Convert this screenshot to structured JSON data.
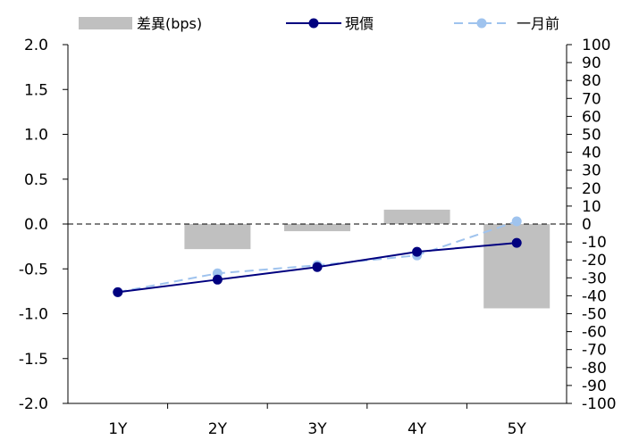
{
  "chart_data": {
    "type": "bar-line",
    "categories": [
      "1Y",
      "2Y",
      "3Y",
      "4Y",
      "5Y"
    ],
    "series": [
      {
        "name": "差異(bps)",
        "type": "bar",
        "axis": "right",
        "values": [
          0,
          -14,
          -4,
          8,
          -47
        ],
        "color": "#c0c0c0"
      },
      {
        "name": "現價",
        "type": "line",
        "axis": "left",
        "values": [
          -0.76,
          -0.62,
          -0.48,
          -0.31,
          -0.21
        ],
        "color": "#00007f"
      },
      {
        "name": "一月前",
        "type": "line",
        "axis": "left",
        "style": "dashed",
        "values": [
          -0.76,
          -0.55,
          -0.46,
          -0.35,
          0.03
        ],
        "color": "#9fc3ee"
      }
    ],
    "y_left": {
      "ylim": [
        -2.0,
        2.0
      ],
      "ticks": [
        "2.0",
        "1.5",
        "1.0",
        "0.5",
        "0.0",
        "-0.5",
        "-1.0",
        "-1.5",
        "-2.0"
      ]
    },
    "y_right": {
      "ylim": [
        -100,
        100
      ],
      "ticks": [
        "100",
        "90",
        "80",
        "70",
        "60",
        "50",
        "40",
        "30",
        "20",
        "10",
        "0",
        "-10",
        "-20",
        "-30",
        "-40",
        "-50",
        "-60",
        "-70",
        "-80",
        "-90",
        "-100"
      ]
    },
    "zero_line": "dashed",
    "grid": false,
    "legend_position": "top"
  }
}
